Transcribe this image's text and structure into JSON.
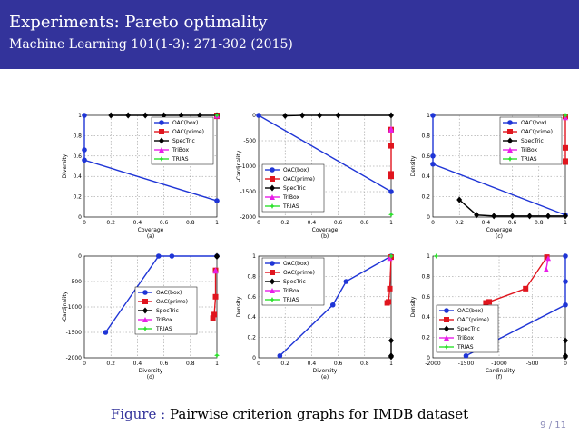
{
  "slide": {
    "title": "Experiments: Pareto optimality",
    "subtitle": "Machine Learning 101(1-3): 271-302 (2015)",
    "caption_label": "Figure :",
    "caption_text": "Pairwise criterion graphs for IMDB dataset",
    "page_number": "9 / 11",
    "colors": {
      "header": "#33339b",
      "OAC(box)": "#1f35d6",
      "OAC(prime)": "#e0151e",
      "SpecTric": "#000000",
      "TriBox": "#e81ee8",
      "TRIAS": "#2ee12e"
    }
  },
  "chart_data": [
    {
      "type": "line",
      "panel": "(a)",
      "xlabel": "Coverage",
      "ylabel": "Diversity",
      "xlim": [
        0,
        1
      ],
      "ylim": [
        0,
        1
      ],
      "xticks": [
        "0",
        "0.2",
        "0.4",
        "0.6",
        "0.8",
        "1"
      ],
      "yticks": [
        "0",
        "0.2",
        "0.4",
        "0.6",
        "0.8",
        "1"
      ],
      "grid": true,
      "legend": "top-right",
      "series": [
        {
          "name": "OAC(box)",
          "x": [
            1.0,
            0.0,
            0.0,
            0.0
          ],
          "y": [
            0.16,
            0.56,
            0.66,
            1.0
          ]
        },
        {
          "name": "OAC(prime)",
          "x": [
            1.0,
            1.0
          ],
          "y": [
            0.99,
            1.0
          ]
        },
        {
          "name": "SpecTric",
          "x": [
            0.2,
            0.33,
            0.46,
            0.6,
            0.73,
            0.87,
            1.0
          ],
          "y": [
            1,
            1,
            1,
            1,
            1,
            1,
            1
          ]
        },
        {
          "name": "TriBox",
          "x": [
            1.0,
            1.0
          ],
          "y": [
            0.995,
            1.0
          ]
        },
        {
          "name": "TRIAS",
          "x": [
            1.0
          ],
          "y": [
            1.0
          ]
        }
      ]
    },
    {
      "type": "line",
      "panel": "(b)",
      "xlabel": "Coverage",
      "ylabel": "-Cardinality",
      "xlim": [
        0,
        1
      ],
      "ylim": [
        -2000,
        0
      ],
      "xticks": [
        "0",
        "0.2",
        "0.4",
        "0.6",
        "0.8",
        "1"
      ],
      "yticks": [
        "-2000",
        "-1500",
        "-1000",
        "-500",
        "0"
      ],
      "grid": true,
      "legend": "bottom-left",
      "series": [
        {
          "name": "OAC(box)",
          "x": [
            0.0,
            1.0
          ],
          "y": [
            0,
            -1500
          ]
        },
        {
          "name": "OAC(prime)",
          "x": [
            1.0,
            1.0,
            1.0,
            1.0
          ],
          "y": [
            -280,
            -600,
            -1150,
            -1200
          ]
        },
        {
          "name": "SpecTric",
          "x": [
            0.2,
            0.33,
            0.46,
            0.6,
            1.0
          ],
          "y": [
            -10,
            0,
            0,
            0,
            0
          ]
        },
        {
          "name": "TriBox",
          "x": [
            1.0,
            1.0
          ],
          "y": [
            -260,
            -290
          ]
        },
        {
          "name": "TRIAS",
          "x": [
            1.0
          ],
          "y": [
            -1950
          ]
        }
      ]
    },
    {
      "type": "line",
      "panel": "(c)",
      "xlabel": "Coverage",
      "ylabel": "Density",
      "xlim": [
        0,
        1
      ],
      "ylim": [
        0,
        1
      ],
      "xticks": [
        "0",
        "0.2",
        "0.4",
        "0.6",
        "0.8",
        "1"
      ],
      "yticks": [
        "0",
        "0.2",
        "0.4",
        "0.6",
        "0.8",
        "1"
      ],
      "grid": true,
      "legend": "top-right",
      "series": [
        {
          "name": "OAC(box)",
          "x": [
            1.0,
            0.0,
            0.0,
            0.0
          ],
          "y": [
            0.02,
            0.52,
            0.6,
            1.0
          ]
        },
        {
          "name": "OAC(prime)",
          "x": [
            1.0,
            1.0,
            1.0,
            1.0
          ],
          "y": [
            0.99,
            0.68,
            0.55,
            0.54
          ]
        },
        {
          "name": "SpecTric",
          "x": [
            0.2,
            0.33,
            0.46,
            0.6,
            0.73,
            0.87,
            1.0
          ],
          "y": [
            0.17,
            0.02,
            0.01,
            0.01,
            0.01,
            0.01,
            0.01
          ]
        },
        {
          "name": "TriBox",
          "x": [
            1.0
          ],
          "y": [
            0.98
          ]
        },
        {
          "name": "TRIAS",
          "x": [
            1.0
          ],
          "y": [
            1.0
          ]
        }
      ]
    },
    {
      "type": "line",
      "panel": "(d)",
      "xlabel": "Diversity",
      "ylabel": "-Cardinality",
      "xlim": [
        0,
        1
      ],
      "ylim": [
        -2000,
        0
      ],
      "xticks": [
        "0",
        "0.2",
        "0.4",
        "0.6",
        "0.8",
        "1"
      ],
      "yticks": [
        "-2000",
        "-1500",
        "-1000",
        "-500",
        "0"
      ],
      "grid": true,
      "legend": "center",
      "series": [
        {
          "name": "OAC(box)",
          "x": [
            0.16,
            0.56,
            0.66,
            1.0
          ],
          "y": [
            -1500,
            0,
            0,
            0
          ]
        },
        {
          "name": "OAC(prime)",
          "x": [
            0.99,
            0.99,
            0.98,
            0.97
          ],
          "y": [
            -280,
            -800,
            -1150,
            -1220
          ]
        },
        {
          "name": "SpecTric",
          "x": [
            1.0,
            1.0
          ],
          "y": [
            0,
            -10
          ]
        },
        {
          "name": "TriBox",
          "x": [
            0.99,
            0.99
          ],
          "y": [
            -270,
            -290
          ]
        },
        {
          "name": "TRIAS",
          "x": [
            1.0
          ],
          "y": [
            -1950
          ]
        }
      ]
    },
    {
      "type": "line",
      "panel": "(e)",
      "xlabel": "Diversity",
      "ylabel": "Density",
      "xlim": [
        0,
        1
      ],
      "ylim": [
        0,
        1
      ],
      "xticks": [
        "0",
        "0.2",
        "0.4",
        "0.6",
        "0.8",
        "1"
      ],
      "yticks": [
        "0",
        "0.2",
        "0.4",
        "0.6",
        "0.8",
        "1"
      ],
      "grid": true,
      "legend": "top-left",
      "series": [
        {
          "name": "OAC(box)",
          "x": [
            0.16,
            0.56,
            0.66,
            1.0
          ],
          "y": [
            0.02,
            0.52,
            0.75,
            1.0
          ]
        },
        {
          "name": "OAC(prime)",
          "x": [
            1.0,
            0.99,
            0.98,
            0.97
          ],
          "y": [
            0.99,
            0.68,
            0.55,
            0.54
          ]
        },
        {
          "name": "SpecTric",
          "x": [
            1.0,
            1.0,
            1.0
          ],
          "y": [
            0.17,
            0.02,
            0.01
          ]
        },
        {
          "name": "TriBox",
          "x": [
            0.99
          ],
          "y": [
            0.98
          ]
        },
        {
          "name": "TRIAS",
          "x": [
            1.0
          ],
          "y": [
            1.0
          ]
        }
      ]
    },
    {
      "type": "line",
      "panel": "(f)",
      "xlabel": "-Cardinality",
      "ylabel": "Density",
      "xlim": [
        -2000,
        0
      ],
      "ylim": [
        0,
        1
      ],
      "xticks": [
        "-2000",
        "-1500",
        "-1000",
        "-500",
        "0"
      ],
      "yticks": [
        "0",
        "0.2",
        "0.4",
        "0.6",
        "0.8",
        "1"
      ],
      "grid": true,
      "legend": "bottom-left",
      "series": [
        {
          "name": "OAC(box)",
          "x": [
            -1500,
            0,
            0,
            0
          ],
          "y": [
            0.02,
            0.52,
            0.75,
            1.0
          ]
        },
        {
          "name": "OAC(prime)",
          "x": [
            -280,
            -600,
            -1150,
            -1200
          ],
          "y": [
            0.99,
            0.68,
            0.55,
            0.54
          ]
        },
        {
          "name": "SpecTric",
          "x": [
            0,
            0,
            0
          ],
          "y": [
            0.17,
            0.02,
            0.01
          ]
        },
        {
          "name": "TriBox",
          "x": [
            -260,
            -290
          ],
          "y": [
            0.98,
            0.87
          ]
        },
        {
          "name": "TRIAS",
          "x": [
            -1950
          ],
          "y": [
            1.0
          ]
        }
      ]
    }
  ]
}
